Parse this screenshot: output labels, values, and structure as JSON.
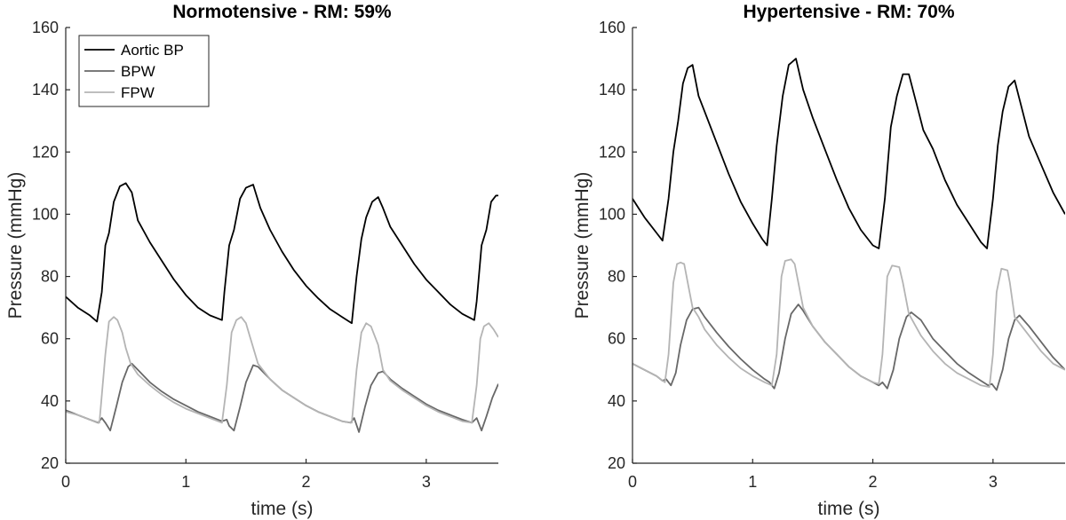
{
  "chart_data": [
    {
      "type": "line",
      "title": "Normotensive - RM: 59%",
      "xlabel": "time (s)",
      "ylabel": "Pressure (mmHg)",
      "xlim": [
        0,
        3.6
      ],
      "ylim": [
        20,
        160
      ],
      "xticks": [
        "0",
        "1",
        "2",
        "3"
      ],
      "yticks": [
        "20",
        "40",
        "60",
        "80",
        "100",
        "120",
        "140",
        "160"
      ],
      "grid": false,
      "legend": {
        "placement": "top-left",
        "entries": [
          "Aortic BP",
          "BPW",
          "FPW"
        ]
      },
      "series": [
        {
          "name": "Aortic BP",
          "color": "#000000",
          "x": [
            0,
            0.1,
            0.2,
            0.26,
            0.3,
            0.33,
            0.36,
            0.4,
            0.45,
            0.5,
            0.55,
            0.6,
            0.7,
            0.8,
            0.9,
            1.0,
            1.1,
            1.2,
            1.3,
            1.32,
            1.36,
            1.4,
            1.45,
            1.5,
            1.56,
            1.62,
            1.7,
            1.8,
            1.9,
            2.0,
            2.1,
            2.2,
            2.3,
            2.38,
            2.42,
            2.46,
            2.5,
            2.55,
            2.6,
            2.64,
            2.7,
            2.8,
            2.9,
            3.0,
            3.1,
            3.2,
            3.3,
            3.4,
            3.42,
            3.46,
            3.5,
            3.54,
            3.58,
            3.6
          ],
          "y": [
            73.5,
            70,
            67.5,
            65.5,
            75,
            90,
            94,
            104,
            109,
            110,
            107,
            98,
            91,
            85,
            79,
            74,
            70,
            67.5,
            66,
            75,
            90,
            95,
            105,
            108.5,
            109.5,
            102,
            95,
            88,
            82,
            77,
            73,
            69.5,
            67,
            65,
            80,
            92,
            99,
            104,
            105.5,
            102,
            96,
            90,
            84,
            79,
            75,
            71,
            68,
            66,
            72,
            90,
            95,
            104,
            106,
            106
          ]
        },
        {
          "name": "BPW",
          "color": "#686868",
          "x": [
            0,
            0.1,
            0.2,
            0.27,
            0.3,
            0.33,
            0.37,
            0.42,
            0.47,
            0.52,
            0.55,
            0.6,
            0.7,
            0.8,
            0.9,
            1.0,
            1.1,
            1.2,
            1.3,
            1.34,
            1.36,
            1.4,
            1.45,
            1.5,
            1.56,
            1.6,
            1.7,
            1.8,
            1.9,
            2.0,
            2.1,
            2.2,
            2.3,
            2.37,
            2.4,
            2.44,
            2.49,
            2.54,
            2.6,
            2.64,
            2.7,
            2.8,
            2.9,
            3.0,
            3.1,
            3.2,
            3.3,
            3.38,
            3.42,
            3.46,
            3.5,
            3.55,
            3.6
          ],
          "y": [
            37,
            35.5,
            34,
            33,
            34.5,
            33,
            30.5,
            38,
            46,
            51,
            52,
            50,
            46,
            43,
            40.5,
            38.5,
            36.5,
            35,
            33.5,
            34,
            32,
            30.5,
            38,
            46,
            51.5,
            51,
            47,
            43.5,
            41,
            38.5,
            36.5,
            35,
            33.5,
            33,
            34.5,
            30,
            38,
            45,
            49,
            49.5,
            47,
            44,
            41.5,
            39,
            37,
            35.5,
            34,
            33,
            34.5,
            30.5,
            35,
            41,
            45.5
          ]
        },
        {
          "name": "FPW",
          "color": "#b4b4b4",
          "x": [
            0,
            0.1,
            0.2,
            0.28,
            0.33,
            0.36,
            0.4,
            0.43,
            0.47,
            0.5,
            0.54,
            0.6,
            0.7,
            0.8,
            0.9,
            1.0,
            1.1,
            1.2,
            1.3,
            1.34,
            1.38,
            1.42,
            1.46,
            1.5,
            1.53,
            1.6,
            1.7,
            1.8,
            1.9,
            2.0,
            2.1,
            2.2,
            2.3,
            2.38,
            2.42,
            2.46,
            2.5,
            2.54,
            2.6,
            2.64,
            2.7,
            2.8,
            2.9,
            3.0,
            3.1,
            3.2,
            3.3,
            3.38,
            3.42,
            3.45,
            3.48,
            3.52,
            3.56,
            3.6
          ],
          "y": [
            36.5,
            35.5,
            34,
            33,
            55,
            65.5,
            67,
            66,
            62,
            57,
            52,
            48.5,
            45,
            42,
            39.5,
            37.5,
            36,
            34.5,
            33,
            45,
            62,
            66,
            67,
            65,
            61,
            52,
            47,
            43.5,
            41,
            38.5,
            36.5,
            35,
            33.5,
            33,
            50,
            62,
            65,
            64,
            58,
            50,
            46.5,
            43.5,
            41,
            38.5,
            36.5,
            35,
            33.5,
            33,
            45,
            60,
            64,
            65,
            63,
            60.5
          ]
        }
      ]
    },
    {
      "type": "line",
      "title": "Hypertensive - RM: 70%",
      "xlabel": "time (s)",
      "ylabel": "Pressure (mmHg)",
      "xlim": [
        0,
        3.6
      ],
      "ylim": [
        20,
        160
      ],
      "xticks": [
        "0",
        "1",
        "2",
        "3"
      ],
      "yticks": [
        "20",
        "40",
        "60",
        "80",
        "100",
        "120",
        "140",
        "160"
      ],
      "grid": false,
      "series": [
        {
          "name": "Aortic BP",
          "color": "#000000",
          "x": [
            0,
            0.1,
            0.2,
            0.25,
            0.3,
            0.34,
            0.38,
            0.42,
            0.46,
            0.5,
            0.55,
            0.6,
            0.7,
            0.8,
            0.9,
            1.0,
            1.08,
            1.12,
            1.16,
            1.2,
            1.25,
            1.3,
            1.36,
            1.42,
            1.5,
            1.6,
            1.7,
            1.8,
            1.9,
            2.0,
            2.05,
            2.1,
            2.15,
            2.2,
            2.25,
            2.3,
            2.36,
            2.42,
            2.5,
            2.6,
            2.7,
            2.8,
            2.9,
            2.95,
            3.0,
            3.04,
            3.08,
            3.13,
            3.18,
            3.24,
            3.3,
            3.4,
            3.5,
            3.6
          ],
          "y": [
            105,
            99,
            94,
            91.5,
            105,
            120,
            130,
            142,
            147,
            148,
            138,
            133,
            123,
            113,
            104,
            97,
            92,
            90,
            105,
            122,
            138,
            148,
            150,
            140,
            131,
            121,
            111,
            102,
            95,
            90,
            89,
            105,
            128,
            138,
            145,
            145,
            136,
            127,
            121,
            111,
            103,
            97,
            91,
            89,
            105,
            122,
            133,
            141,
            143,
            134,
            125,
            116,
            107,
            100
          ]
        },
        {
          "name": "BPW",
          "color": "#686868",
          "x": [
            0,
            0.1,
            0.2,
            0.25,
            0.28,
            0.32,
            0.36,
            0.4,
            0.45,
            0.5,
            0.55,
            0.6,
            0.7,
            0.8,
            0.9,
            1.0,
            1.1,
            1.14,
            1.18,
            1.22,
            1.27,
            1.32,
            1.38,
            1.42,
            1.5,
            1.6,
            1.7,
            1.8,
            1.9,
            2.0,
            2.05,
            2.08,
            2.12,
            2.17,
            2.22,
            2.28,
            2.32,
            2.4,
            2.5,
            2.6,
            2.7,
            2.8,
            2.9,
            2.96,
            2.99,
            3.03,
            3.08,
            3.13,
            3.18,
            3.22,
            3.3,
            3.4,
            3.5,
            3.6
          ],
          "y": [
            52,
            50,
            48,
            46.5,
            47,
            45,
            49,
            58,
            66,
            69.5,
            70,
            67,
            62,
            57.5,
            53.5,
            50,
            47,
            46,
            44,
            49,
            60,
            68,
            71,
            69,
            64,
            59,
            55,
            51,
            48,
            46,
            45,
            46,
            44,
            50,
            60,
            67,
            68.5,
            66,
            60,
            56,
            52,
            49,
            46.5,
            45,
            45.5,
            43.5,
            50,
            60,
            66,
            67.5,
            64,
            59,
            54,
            50
          ]
        },
        {
          "name": "FPW",
          "color": "#b4b4b4",
          "x": [
            0,
            0.1,
            0.2,
            0.27,
            0.3,
            0.34,
            0.37,
            0.4,
            0.43,
            0.46,
            0.5,
            0.55,
            0.6,
            0.7,
            0.8,
            0.9,
            1.0,
            1.1,
            1.16,
            1.2,
            1.24,
            1.27,
            1.32,
            1.35,
            1.38,
            1.42,
            1.5,
            1.6,
            1.7,
            1.8,
            1.9,
            2.0,
            2.05,
            2.08,
            2.12,
            2.16,
            2.22,
            2.25,
            2.3,
            2.4,
            2.5,
            2.6,
            2.7,
            2.8,
            2.9,
            2.97,
            3.0,
            3.03,
            3.07,
            3.12,
            3.14,
            3.18,
            3.3,
            3.4,
            3.5,
            3.6
          ],
          "y": [
            52,
            50,
            48,
            46,
            55,
            78,
            84,
            84.5,
            84,
            78,
            70,
            67,
            63,
            58,
            54,
            50.5,
            48,
            46,
            45,
            55,
            80,
            85,
            85.5,
            84,
            78,
            70,
            64,
            59,
            55,
            51,
            48,
            46,
            45.5,
            55,
            80,
            83.5,
            83,
            78,
            68,
            61,
            56,
            52,
            49,
            47,
            45,
            44.5,
            55,
            75,
            82.5,
            82,
            78,
            67,
            61,
            56,
            52,
            50
          ]
        }
      ]
    }
  ]
}
